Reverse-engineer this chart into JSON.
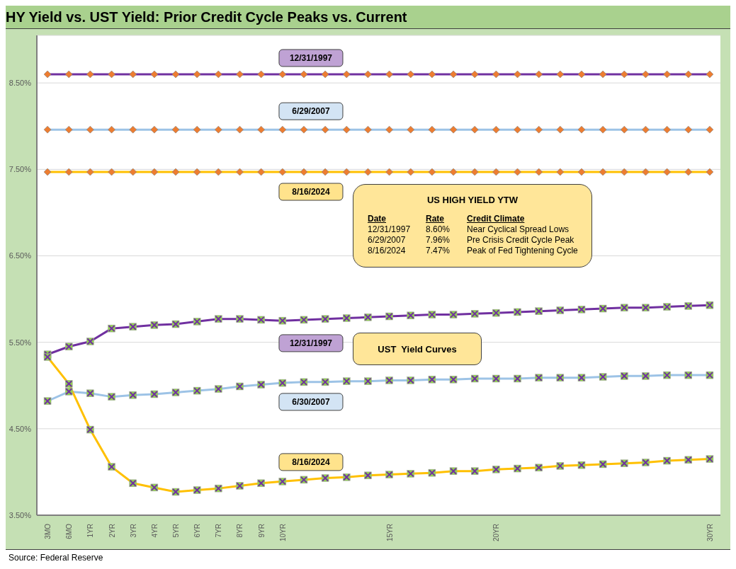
{
  "chart_data": {
    "type": "line",
    "title": "HY Yield vs. UST Yield: Prior Credit Cycle Peaks vs. Current",
    "categories": [
      "3MO",
      "6MO",
      "1YR",
      "2YR",
      "3YR",
      "4YR",
      "5YR",
      "6YR",
      "7YR",
      "8YR",
      "9YR",
      "10YR",
      null,
      null,
      null,
      null,
      "15YR",
      null,
      null,
      null,
      null,
      "20YR",
      null,
      null,
      null,
      null,
      null,
      null,
      null,
      null,
      null,
      "30YR"
    ],
    "series": [
      {
        "name": "12/31/1997",
        "color": "#7030a0",
        "marker": "diamond",
        "values": [
          8.6,
          8.6,
          8.6,
          8.6,
          8.6,
          8.6,
          8.6,
          8.6,
          8.6,
          8.6,
          8.6,
          8.6,
          8.6,
          8.6,
          8.6,
          8.6,
          8.6,
          8.6,
          8.6,
          8.6,
          8.6,
          8.6,
          8.6,
          8.6,
          8.6,
          8.6,
          8.6,
          8.6,
          8.6,
          8.6,
          8.6,
          8.6
        ]
      },
      {
        "name": "6/29/2007",
        "color": "#9dc3e6",
        "marker": "diamond",
        "values": [
          7.96,
          7.96,
          7.96,
          7.96,
          7.96,
          7.96,
          7.96,
          7.96,
          7.96,
          7.96,
          7.96,
          7.96,
          7.96,
          7.96,
          7.96,
          7.96,
          7.96,
          7.96,
          7.96,
          7.96,
          7.96,
          7.96,
          7.96,
          7.96,
          7.96,
          7.96,
          7.96,
          7.96,
          7.96,
          7.96,
          7.96,
          7.96
        ]
      },
      {
        "name": "8/16/2024",
        "color": "#ffc000",
        "marker": "diamond",
        "values": [
          7.47,
          7.47,
          7.47,
          7.47,
          7.47,
          7.47,
          7.47,
          7.47,
          7.47,
          7.47,
          7.47,
          7.47,
          7.47,
          7.47,
          7.47,
          7.47,
          7.47,
          7.47,
          7.47,
          7.47,
          7.47,
          7.47,
          7.47,
          7.47,
          7.47,
          7.47,
          7.47,
          7.47,
          7.47,
          7.47,
          7.47,
          7.47
        ]
      },
      {
        "name": "12/31/1997",
        "color": "#7030a0",
        "marker": "cross",
        "values": [
          5.36,
          5.45,
          5.51,
          5.66,
          5.68,
          5.7,
          5.71,
          5.74,
          5.77,
          5.77,
          5.76,
          5.75,
          5.76,
          5.77,
          5.78,
          5.79,
          5.8,
          5.81,
          5.82,
          5.82,
          5.83,
          5.84,
          5.85,
          5.86,
          5.87,
          5.88,
          5.89,
          5.9,
          5.9,
          5.91,
          5.92,
          5.93
        ]
      },
      {
        "name": "6/30/2007",
        "color": "#9dc3e6",
        "marker": "square",
        "values": [
          4.82,
          4.93,
          4.91,
          4.87,
          4.89,
          4.9,
          4.92,
          4.94,
          4.96,
          4.99,
          5.01,
          5.03,
          5.04,
          5.04,
          5.05,
          5.05,
          5.06,
          5.06,
          5.07,
          5.07,
          5.08,
          5.08,
          5.08,
          5.09,
          5.09,
          5.09,
          5.1,
          5.11,
          5.11,
          5.12,
          5.12,
          5.12
        ]
      },
      {
        "name": "8/16/2024",
        "color": "#ffc000",
        "marker": "square",
        "values": [
          5.33,
          5.02,
          4.49,
          4.06,
          3.87,
          3.82,
          3.77,
          3.79,
          3.81,
          3.84,
          3.87,
          3.89,
          3.91,
          3.93,
          3.94,
          3.96,
          3.97,
          3.98,
          3.99,
          4.01,
          4.01,
          4.03,
          4.04,
          4.05,
          4.07,
          4.08,
          4.09,
          4.1,
          4.11,
          4.13,
          4.14,
          4.15
        ]
      }
    ],
    "ylim": [
      3.5,
      9.05
    ],
    "yticks": [
      {
        "value": 3.5,
        "label": "3.50%"
      },
      {
        "value": 4.5,
        "label": "4.50%"
      },
      {
        "value": 5.5,
        "label": "5.50%"
      },
      {
        "value": 6.5,
        "label": "6.50%"
      },
      {
        "value": 7.5,
        "label": "7.50%"
      },
      {
        "value": 8.5,
        "label": "8.50%"
      }
    ],
    "grid": "y",
    "annotations": [
      "US HIGH YIELD YTW",
      "Date",
      "Rate",
      "Credit Climate",
      "12/31/1997",
      "8.60%",
      "Near Cyclical Spread Lows",
      "6/29/2007",
      "7.96%",
      "Pre Crisis Credit Cycle Peak",
      "8/16/2024",
      "7.47%",
      "Peak of Fed Tightening Cycle",
      "UST  Yield Curves",
      "Source: Federal Reserve"
    ]
  }
}
